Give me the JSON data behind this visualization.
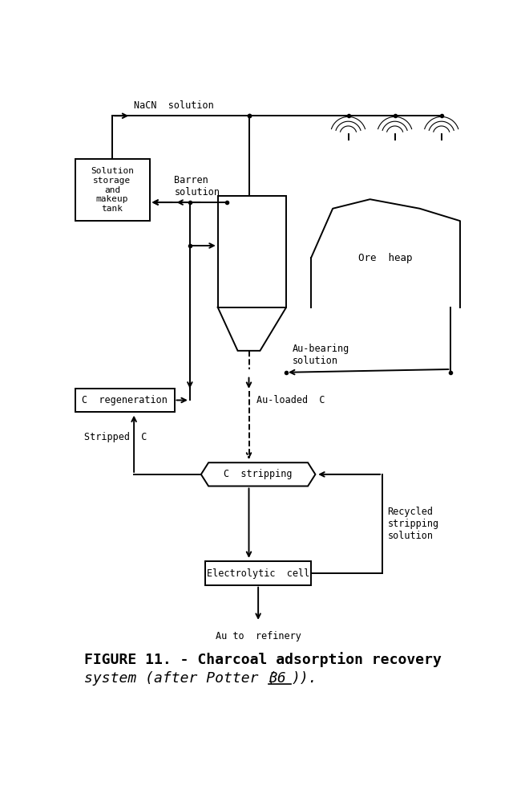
{
  "bg": "#ffffff",
  "lc": "#000000",
  "lw": 1.4,
  "figsize": [
    6.55,
    9.84
  ],
  "dpi": 100,
  "caption1": "FIGURE 11. - Charcoal adsorption recovery",
  "caption2": "system (after Potter (36)).",
  "nacn_text": "NaCN  solution",
  "barren_text": "Barren\nsolution",
  "au_bearing_text": "Au-bearing\nsolution",
  "au_loaded_text": "Au-loaded  C",
  "stripped_c_text": "Stripped  C",
  "recycled_text": "Recycled\nstripping\nsolution",
  "au_refinery_text": "Au to  refinery",
  "ore_heap_text": "Ore  heap",
  "storage_text": "Solution\nstorage\nand\nmakeup\ntank",
  "c_regen_text": "C  regeneration",
  "c_strip_text": "C  stripping",
  "elec_text": "Electrolytic  cell"
}
